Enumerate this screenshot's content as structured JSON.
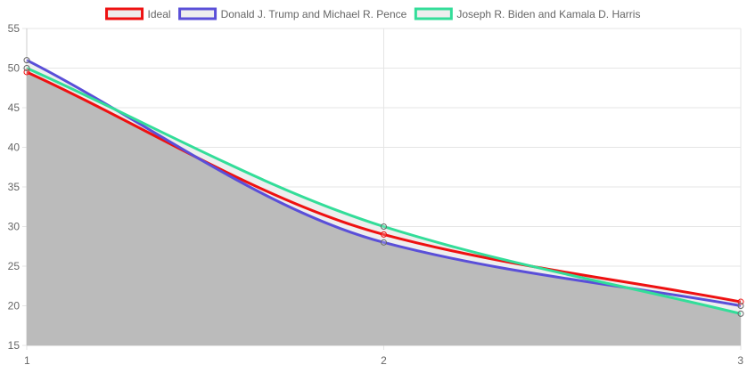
{
  "chart_data": {
    "type": "line",
    "title": "",
    "xlabel": "",
    "ylabel": "",
    "x": [
      1,
      2,
      3
    ],
    "xlim": [
      1,
      3
    ],
    "ylim": [
      15,
      55
    ],
    "x_ticks": [
      "1",
      "2",
      "3"
    ],
    "y_ticks": [
      "15",
      "20",
      "25",
      "30",
      "35",
      "40",
      "45",
      "50",
      "55"
    ],
    "grid": true,
    "legend_position": "top",
    "fill_below": true,
    "fill_color": "#bbbbbb",
    "series": [
      {
        "name": "Ideal",
        "values": [
          49.5,
          29,
          20.5
        ],
        "color": "#ee1111",
        "point_color": "#ee1111",
        "fill": "#eeeeee"
      },
      {
        "name": "Donald J. Trump and Michael R. Pence",
        "values": [
          51,
          28,
          20
        ],
        "color": "#5a4fd8",
        "point_color": "#666666",
        "fill": "#eeeeee"
      },
      {
        "name": "Joseph R. Biden and Kamala D. Harris",
        "values": [
          50,
          30,
          19
        ],
        "color": "#33dd99",
        "point_color": "#666666",
        "fill": "#eeeeee"
      }
    ]
  }
}
